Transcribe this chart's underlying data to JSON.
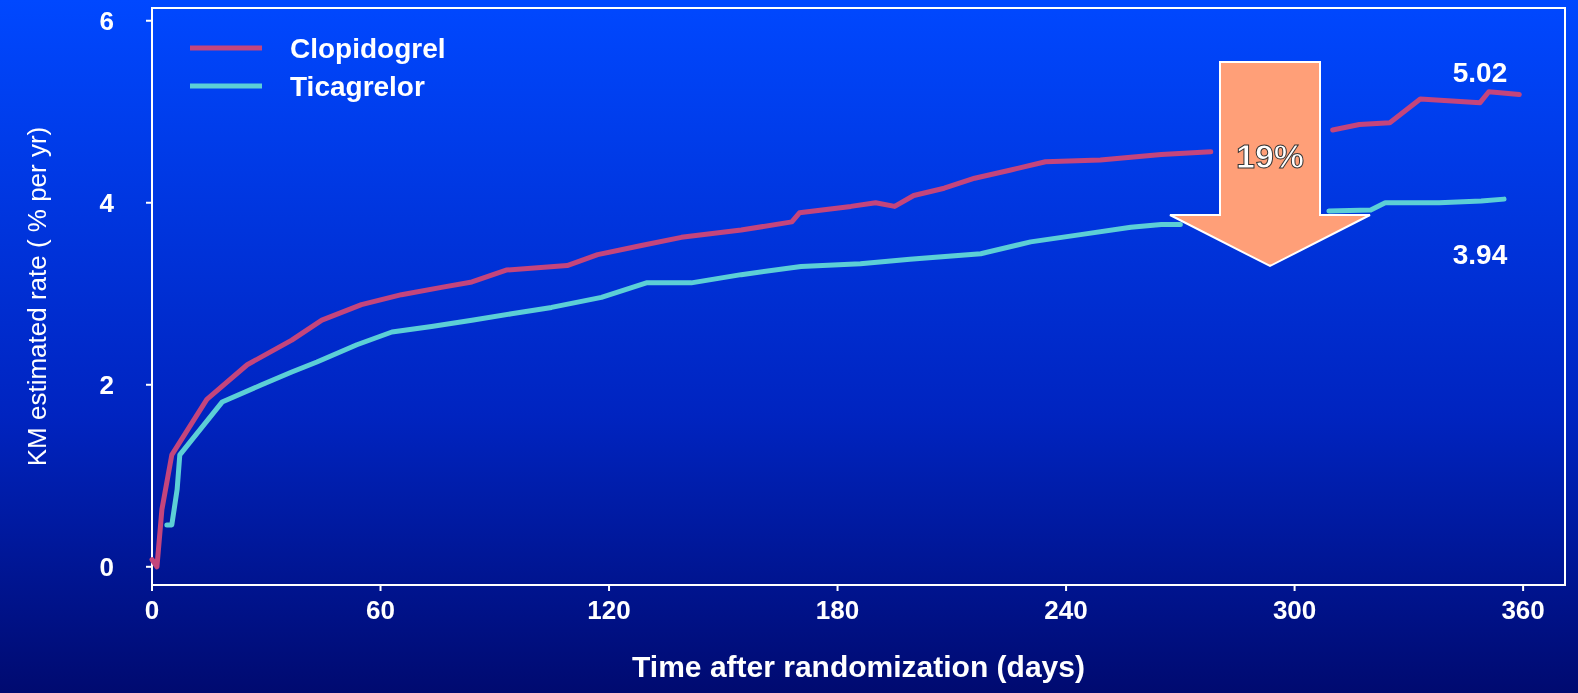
{
  "chart_data": {
    "type": "line",
    "xlabel": "Time after randomization (days)",
    "ylabel": "KM estimated rate ( % per yr)",
    "xlim": [
      0,
      371
    ],
    "ylim": [
      -0.2,
      6.14
    ],
    "xticks": [
      0,
      60,
      120,
      180,
      240,
      300,
      360
    ],
    "yticks": [
      0,
      2,
      4,
      6
    ],
    "grid": false,
    "legend": "top left",
    "marker": "none",
    "line_style": "solid",
    "annotations": [
      "5.02",
      "3.94",
      "19%"
    ],
    "series": [
      {
        "name": "Clopidogrel",
        "color": "#c4457c",
        "x": [
          0,
          1.3,
          2.6,
          5.2,
          14.4,
          25,
          36.7,
          44.6,
          55,
          65.5,
          76,
          84,
          93,
          109,
          117,
          128.5,
          139,
          154.7,
          168,
          170,
          183.5,
          190,
          195,
          200,
          208,
          216,
          225.5,
          234.6,
          249,
          265,
          278,
          290,
          310,
          317,
          325,
          333,
          348.7,
          351,
          359
        ],
        "values": [
          0.08,
          0,
          0.63,
          1.23,
          1.84,
          2.22,
          2.49,
          2.71,
          2.88,
          2.99,
          3.07,
          3.13,
          3.26,
          3.31,
          3.43,
          3.53,
          3.62,
          3.7,
          3.79,
          3.89,
          3.96,
          4.0,
          3.96,
          4.08,
          4.16,
          4.27,
          4.36,
          4.45,
          4.47,
          4.53,
          4.56,
          null,
          4.8,
          4.86,
          4.88,
          5.14,
          5.1,
          5.22,
          5.19
        ]
      },
      {
        "name": "Ticagrelor",
        "color": "#5ccfd6",
        "x": [
          3.9,
          5.2,
          6.6,
          7.3,
          18.4,
          28.8,
          36.7,
          43.3,
          53.8,
          63,
          73.4,
          84,
          94.4,
          104.9,
          118,
          129.8,
          141.6,
          154.7,
          170.4,
          186,
          199,
          217.6,
          230.7,
          243.8,
          257,
          265,
          270,
          295,
          309,
          320,
          323.8,
          338,
          349,
          355
        ],
        "values": [
          0.46,
          0.46,
          0.85,
          1.23,
          1.81,
          2.0,
          2.14,
          2.25,
          2.44,
          2.58,
          2.64,
          2.71,
          2.78,
          2.85,
          2.96,
          3.12,
          3.12,
          3.21,
          3.3,
          3.33,
          3.38,
          3.44,
          3.57,
          3.65,
          3.73,
          3.76,
          3.76,
          null,
          3.91,
          3.92,
          4.0,
          4.0,
          4.02,
          4.04
        ]
      }
    ]
  }
}
